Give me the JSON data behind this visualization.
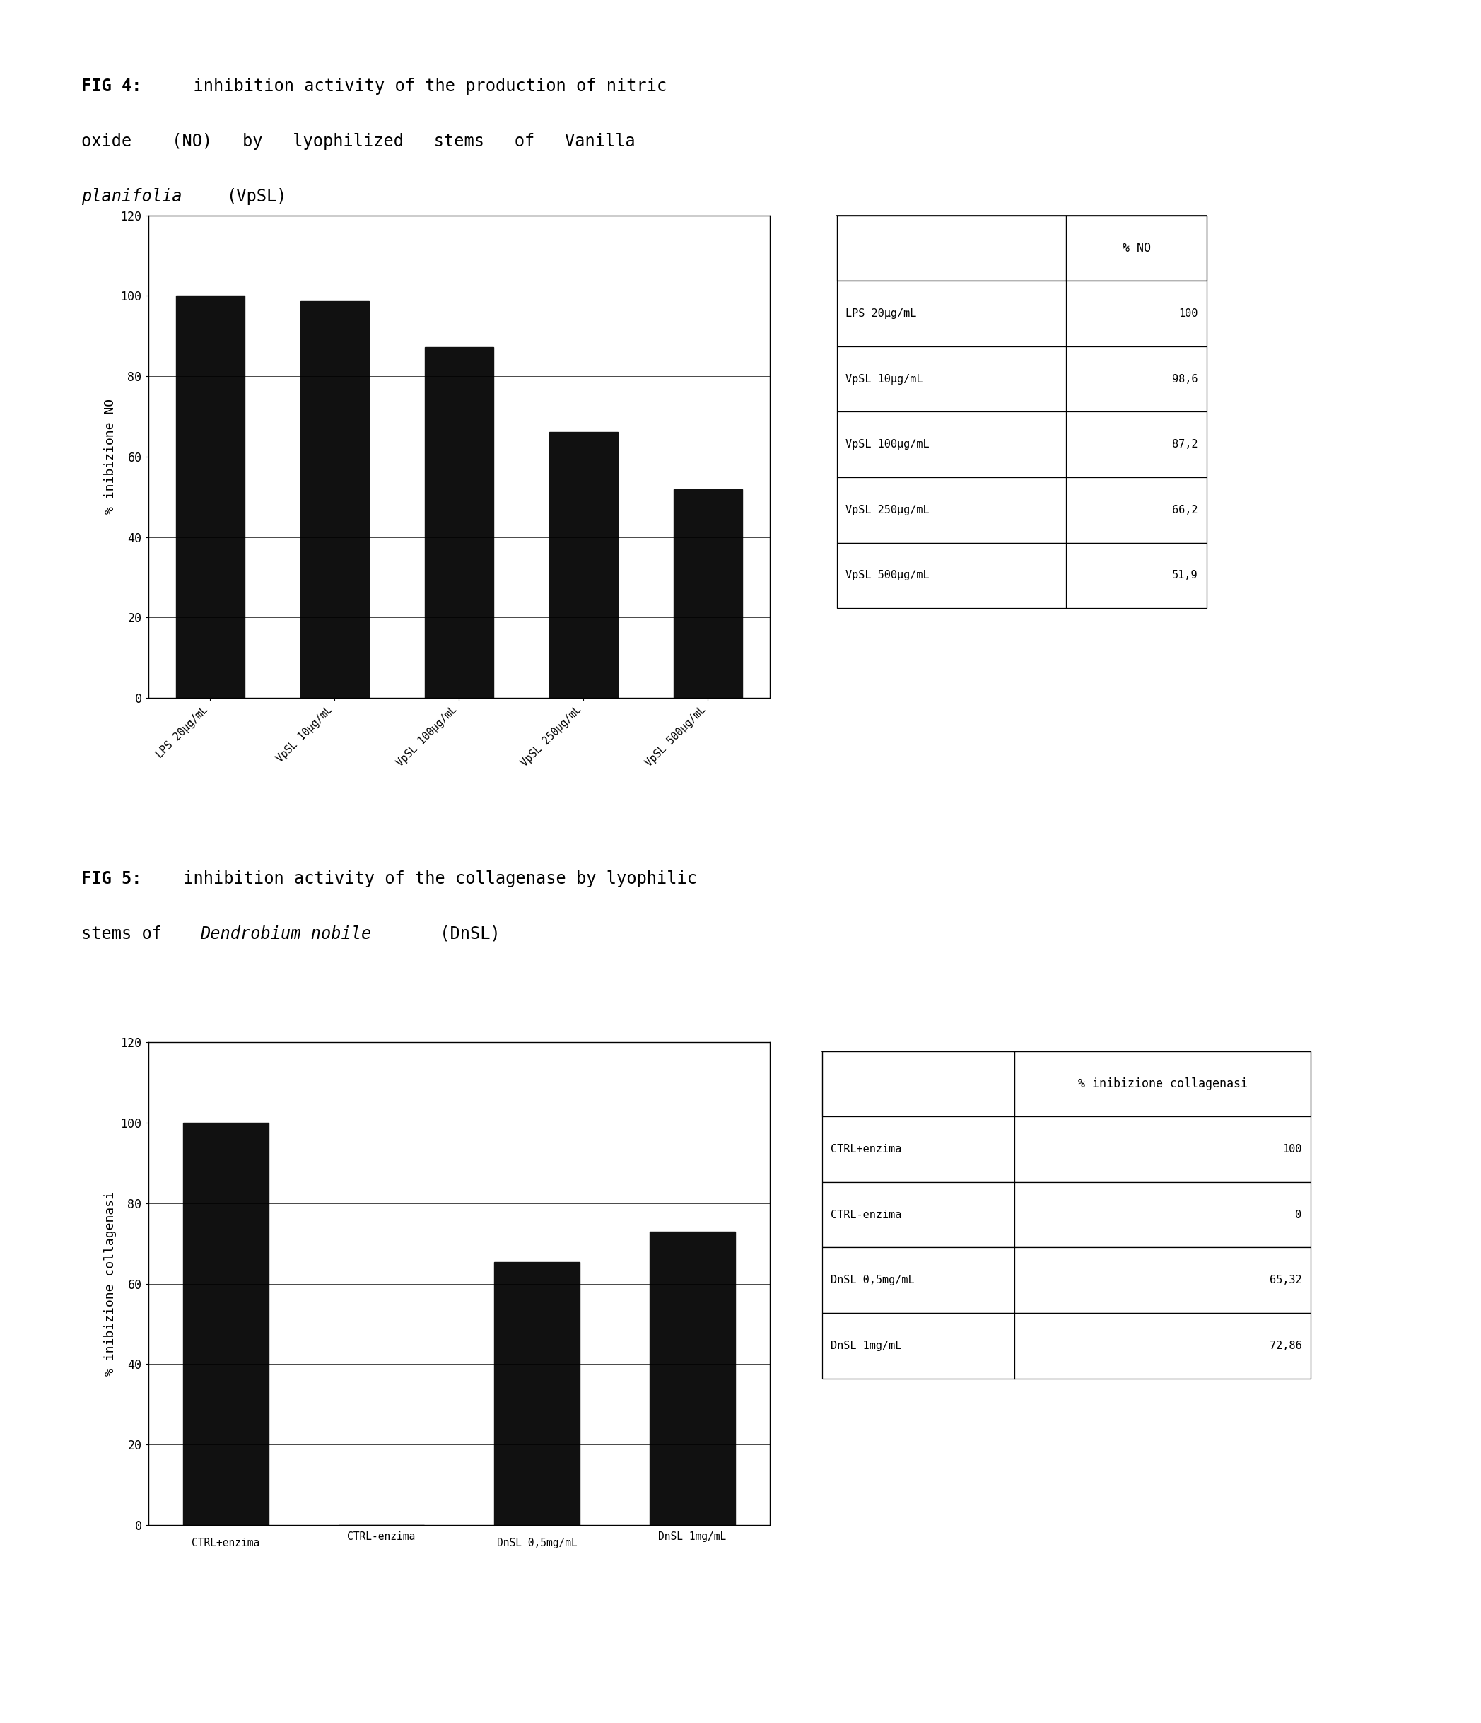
{
  "fig4_title_bold": "FIG 4:",
  "fig4_title_rest1": "  inhibition activity of the production of nitric",
  "fig4_title_line2": "oxide    (NO)   by   lyophilized   stems   of   Vanilla",
  "fig4_title_line3_italic": "planifolia",
  "fig4_title_line3_normal": "(VpSL)",
  "fig4_categories": [
    "LPS 20μg/mL",
    "VpSL 10μg/mL",
    "VpSL 100μg/mL",
    "VpSL 250μg/mL",
    "VpSL 500μg/mL"
  ],
  "fig4_values": [
    100,
    98.6,
    87.2,
    66.2,
    51.9
  ],
  "fig4_ylabel": "% inibizione NO",
  "fig4_ylim": [
    0,
    120
  ],
  "fig4_yticks": [
    0,
    20,
    40,
    60,
    80,
    100,
    120
  ],
  "fig4_table_header2": "% NO",
  "fig4_table_rows": [
    [
      "LPS 20μg/mL",
      "100"
    ],
    [
      "VpSL 10μg/mL",
      "98,6"
    ],
    [
      "VpSL 100μg/mL",
      "87,2"
    ],
    [
      "VpSL 250μg/mL",
      "66,2"
    ],
    [
      "VpSL 500μg/mL",
      "51,9"
    ]
  ],
  "fig5_title_bold": "FIG 5:",
  "fig5_title_rest1": " inhibition activity of the collagenase by lyophilic",
  "fig5_title_line2_normal1": "stems of ",
  "fig5_title_line2_italic": "Dendrobium nobile",
  "fig5_title_line2_normal2": " (DnSL)",
  "fig5_categories": [
    "CTRL+enzima",
    "CTRL-enzima",
    "DnSL 0,5mg/mL",
    "DnSL 1mg/mL"
  ],
  "fig5_values": [
    100,
    0,
    65.32,
    72.86
  ],
  "fig5_ylabel": "% inibizione collagenasi",
  "fig5_ylim": [
    0,
    120
  ],
  "fig5_yticks": [
    0,
    20,
    40,
    60,
    80,
    100,
    120
  ],
  "fig5_table_header2": "% inibizione collagenasi",
  "fig5_table_rows": [
    [
      "CTRL+enzima",
      "100"
    ],
    [
      "CTRL-enzima",
      "0"
    ],
    [
      "DnSL 0,5mg/mL",
      "65,32"
    ],
    [
      "DnSL 1mg/mL",
      "72,86"
    ]
  ],
  "bar_color": "#111111",
  "background_color": "#ffffff",
  "font_size_title": 17,
  "font_size_axis": 13,
  "font_size_tick": 12,
  "font_size_table": 12
}
